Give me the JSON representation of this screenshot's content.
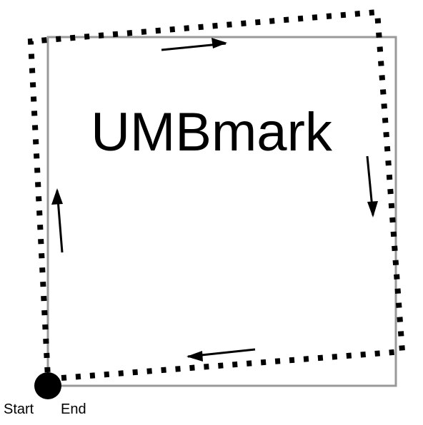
{
  "title": "UMBmark",
  "labels": {
    "start": "Start",
    "end": "End"
  },
  "colors": {
    "ideal_path": "#999999",
    "actual_path": "#000000",
    "arrow": "#000000",
    "start_marker": "#000000"
  }
}
